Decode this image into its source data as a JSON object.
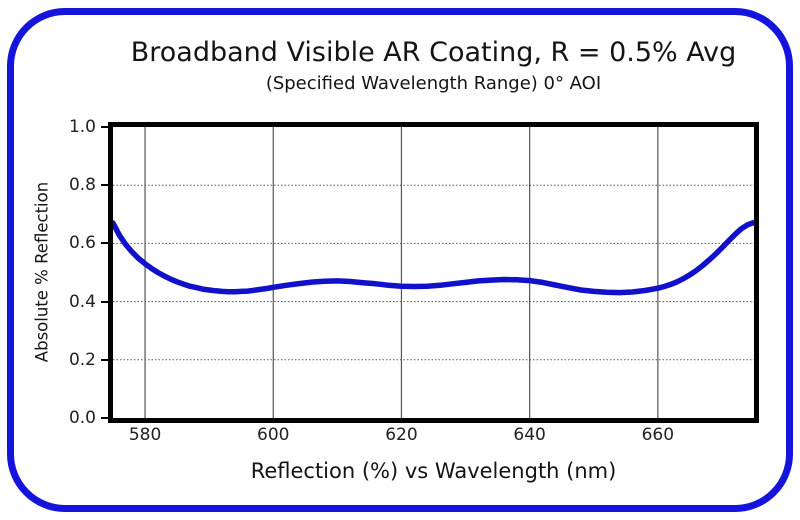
{
  "frame": {
    "border_color": "#1414dd"
  },
  "chart_data": {
    "type": "line",
    "title": "Broadband Visible AR Coating, R = 0.5% Avg",
    "subtitle": "(Specified Wavelength Range) 0° AOI",
    "xlabel": "Reflection (%) vs Wavelength (nm)",
    "ylabel": "Absolute % Reflection",
    "xlim": [
      575,
      675
    ],
    "ylim": [
      0.0,
      1.0
    ],
    "xticks": [
      580,
      600,
      620,
      640,
      660
    ],
    "xticklabels": [
      "580",
      "600",
      "620",
      "640",
      "660"
    ],
    "yticks": [
      0.0,
      0.2,
      0.4,
      0.6,
      0.8,
      1.0
    ],
    "yticklabels": [
      "0.0",
      "0.2",
      "0.4",
      "0.6",
      "0.8",
      "1.0"
    ],
    "grid": true,
    "line_color": "#1111cc",
    "series": [
      {
        "x": [
          575,
          576,
          577,
          578,
          579,
          580,
          581,
          582,
          583,
          584,
          585,
          586,
          587,
          588,
          589,
          590,
          591,
          592,
          593,
          594,
          595,
          596,
          597,
          598,
          599,
          600,
          602,
          604,
          606,
          608,
          610,
          612,
          614,
          616,
          618,
          620,
          622,
          624,
          626,
          628,
          630,
          632,
          634,
          636,
          638,
          640,
          642,
          644,
          646,
          648,
          650,
          652,
          654,
          656,
          658,
          660,
          661,
          662,
          663,
          664,
          665,
          666,
          667,
          668,
          669,
          670,
          671,
          672,
          673,
          674,
          675
        ],
        "y": [
          0.67,
          0.628,
          0.596,
          0.57,
          0.548,
          0.53,
          0.514,
          0.5,
          0.488,
          0.477,
          0.468,
          0.46,
          0.453,
          0.448,
          0.443,
          0.44,
          0.437,
          0.435,
          0.434,
          0.434,
          0.435,
          0.436,
          0.439,
          0.442,
          0.445,
          0.449,
          0.456,
          0.462,
          0.467,
          0.47,
          0.471,
          0.469,
          0.465,
          0.461,
          0.456,
          0.453,
          0.452,
          0.453,
          0.456,
          0.461,
          0.466,
          0.471,
          0.474,
          0.476,
          0.475,
          0.472,
          0.466,
          0.457,
          0.448,
          0.44,
          0.435,
          0.432,
          0.431,
          0.433,
          0.438,
          0.446,
          0.452,
          0.459,
          0.468,
          0.479,
          0.492,
          0.507,
          0.524,
          0.543,
          0.563,
          0.585,
          0.608,
          0.63,
          0.65,
          0.664,
          0.672
        ]
      }
    ]
  }
}
